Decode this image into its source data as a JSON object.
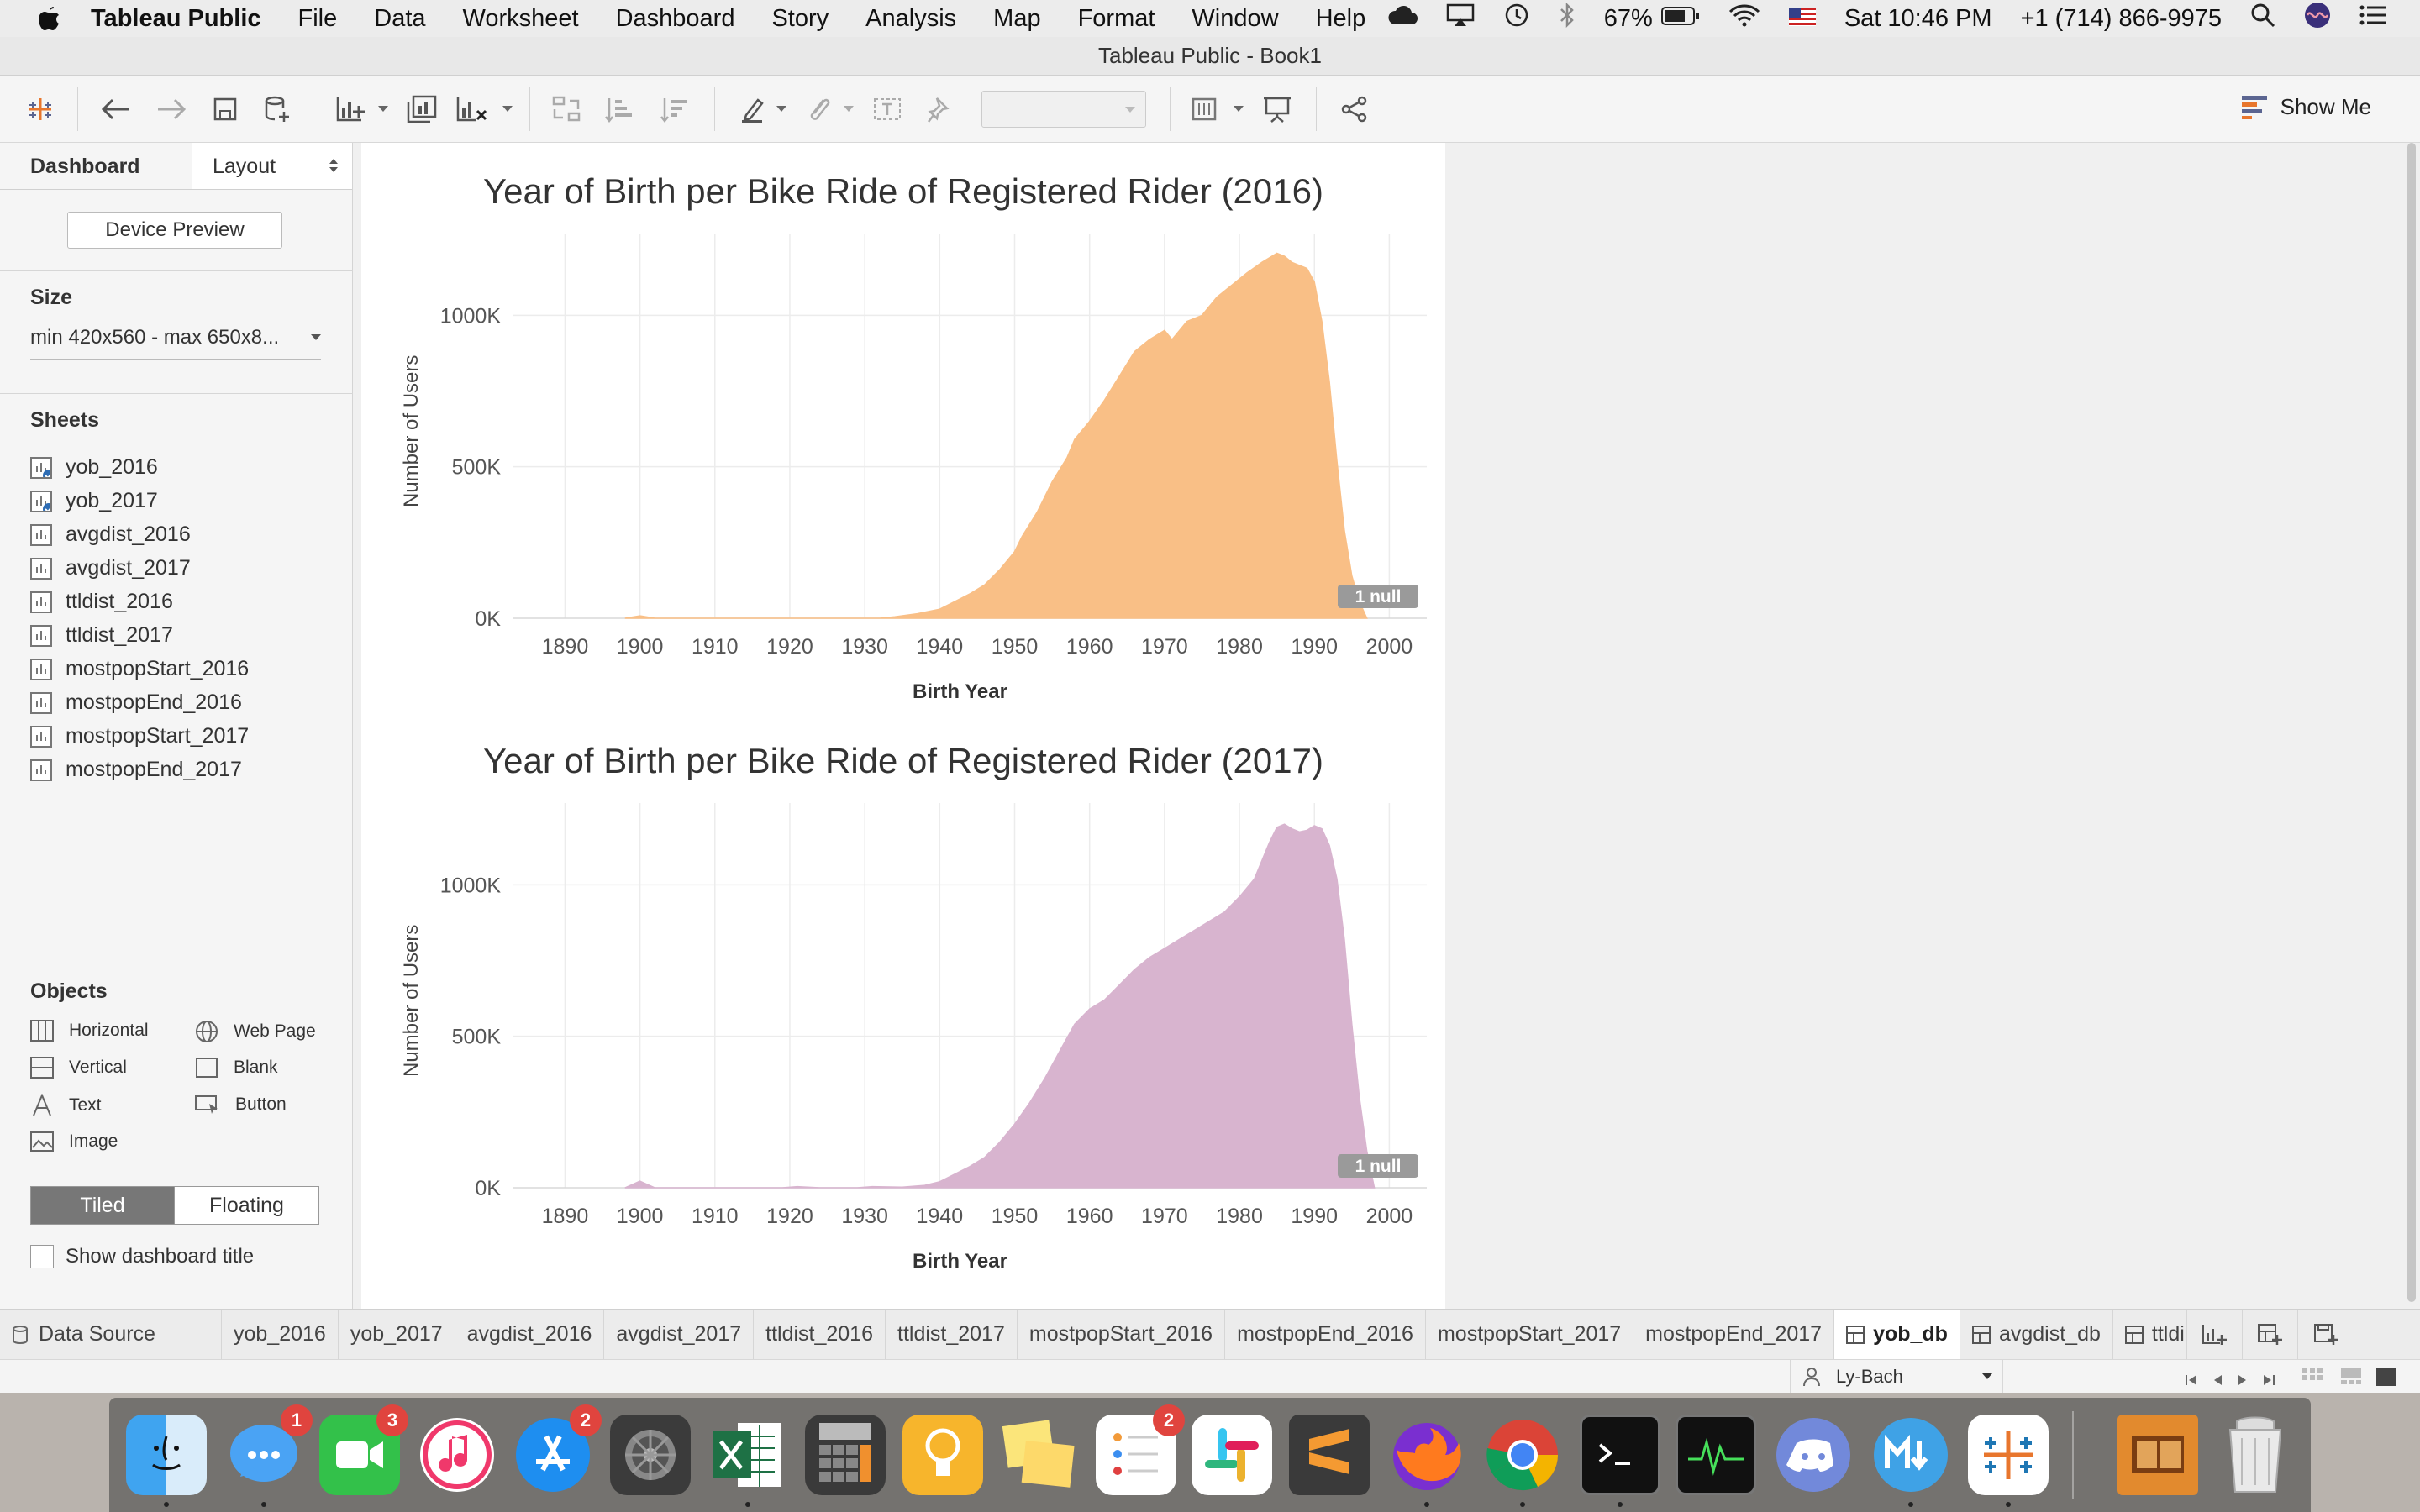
{
  "menubar": {
    "app_name": "Tableau Public",
    "items": [
      "File",
      "Data",
      "Worksheet",
      "Dashboard",
      "Story",
      "Analysis",
      "Map",
      "Format",
      "Window",
      "Help"
    ],
    "battery": "67%",
    "clock": "Sat 10:46 PM",
    "phone": "+1 (714) 866-9975"
  },
  "window": {
    "title": "Tableau Public - Book1"
  },
  "toolbar": {
    "show_me": "Show Me"
  },
  "left_panel": {
    "tab_dashboard": "Dashboard",
    "tab_layout": "Layout",
    "device_preview": "Device Preview",
    "size_heading": "Size",
    "size_value": "min 420x560 - max 650x8...",
    "sheets_heading": "Sheets",
    "sheets": [
      "yob_2016",
      "yob_2017",
      "avgdist_2016",
      "avgdist_2017",
      "ttldist_2016",
      "ttldist_2017",
      "mostpopStart_2016",
      "mostpopEnd_2016",
      "mostpopStart_2017",
      "mostpopEnd_2017"
    ],
    "objects_heading": "Objects",
    "objects": {
      "horizontal": "Horizontal",
      "web_page": "Web Page",
      "vertical": "Vertical",
      "blank": "Blank",
      "text": "Text",
      "button": "Button",
      "image": "Image"
    },
    "tiled": "Tiled",
    "floating": "Floating",
    "show_title": "Show dashboard title"
  },
  "tabs": {
    "data_source": "Data Source",
    "sheets": [
      "yob_2016",
      "yob_2017",
      "avgdist_2016",
      "avgdist_2017",
      "ttldist_2016",
      "ttldist_2017",
      "mostpopStart_2016",
      "mostpopEnd_2016",
      "mostpopStart_2017",
      "mostpopEnd_2017"
    ],
    "dashboards": [
      "yob_db",
      "avgdist_db",
      "ttldi"
    ]
  },
  "status": {
    "user": "Ly-Bach"
  },
  "dock": {
    "badges": {
      "messenger": "1",
      "facetime": "3",
      "appstore": "2",
      "reminders": "2"
    }
  },
  "chart_data": [
    {
      "type": "area",
      "title": "Year of Birth per Bike Ride of Registered Rider (2016)",
      "xlabel": "Birth Year",
      "ylabel": "Number of Users",
      "xlim": [
        1883,
        2005
      ],
      "ylim": [
        0,
        1270000
      ],
      "xticks": [
        "1890",
        "1900",
        "1910",
        "1920",
        "1930",
        "1940",
        "1950",
        "1960",
        "1970",
        "1980",
        "1990",
        "2000"
      ],
      "yticks": [
        "0K",
        "500K",
        "1000K"
      ],
      "null_badge": "1 null",
      "color": "#f9bf86",
      "x": [
        1898,
        1900,
        1902,
        1932,
        1934,
        1937,
        1940,
        1942,
        1944,
        1946,
        1948,
        1950,
        1951,
        1953,
        1955,
        1957,
        1958,
        1960,
        1962,
        1964,
        1966,
        1968,
        1970,
        1971,
        1973,
        1975,
        1977,
        1979,
        1981,
        1983,
        1984,
        1985,
        1986,
        1987,
        1988,
        1989,
        1990,
        1991,
        1992,
        1993,
        1994,
        1995,
        1996,
        1997
      ],
      "y": [
        0,
        8000,
        0,
        0,
        5000,
        15000,
        30000,
        55000,
        80000,
        110000,
        160000,
        220000,
        270000,
        350000,
        450000,
        530000,
        590000,
        650000,
        720000,
        800000,
        880000,
        920000,
        950000,
        920000,
        980000,
        1000000,
        1060000,
        1100000,
        1140000,
        1175000,
        1190000,
        1205000,
        1195000,
        1175000,
        1165000,
        1155000,
        1110000,
        980000,
        780000,
        520000,
        290000,
        140000,
        55000,
        0
      ]
    },
    {
      "type": "area",
      "title": "Year of Birth per Bike Ride of Registered Rider (2017)",
      "xlabel": "Birth Year",
      "ylabel": "Number of Users",
      "xlim": [
        1883,
        2005
      ],
      "ylim": [
        0,
        1270000
      ],
      "xticks": [
        "1890",
        "1900",
        "1910",
        "1920",
        "1930",
        "1940",
        "1950",
        "1960",
        "1970",
        "1980",
        "1990",
        "2000"
      ],
      "yticks": [
        "0K",
        "500K",
        "1000K"
      ],
      "null_badge": "1 null",
      "color": "#d8b4cf",
      "x": [
        1898,
        1900,
        1902,
        1919,
        1921,
        1924,
        1929,
        1931,
        1935,
        1938,
        1940,
        1942,
        1944,
        1946,
        1948,
        1950,
        1952,
        1954,
        1956,
        1958,
        1960,
        1962,
        1964,
        1966,
        1968,
        1970,
        1972,
        1974,
        1976,
        1978,
        1980,
        1982,
        1983,
        1984,
        1985,
        1986,
        1987,
        1988,
        1989,
        1990,
        1991,
        1992,
        1993,
        1994,
        1995,
        1996,
        1997,
        1998
      ],
      "y": [
        0,
        22000,
        0,
        0,
        4000,
        0,
        0,
        4000,
        2000,
        8000,
        20000,
        45000,
        70000,
        100000,
        150000,
        210000,
        280000,
        360000,
        450000,
        540000,
        590000,
        620000,
        670000,
        720000,
        760000,
        790000,
        820000,
        850000,
        880000,
        910000,
        960000,
        1020000,
        1080000,
        1140000,
        1190000,
        1200000,
        1185000,
        1175000,
        1180000,
        1195000,
        1185000,
        1130000,
        1020000,
        820000,
        540000,
        300000,
        120000,
        0
      ]
    }
  ]
}
